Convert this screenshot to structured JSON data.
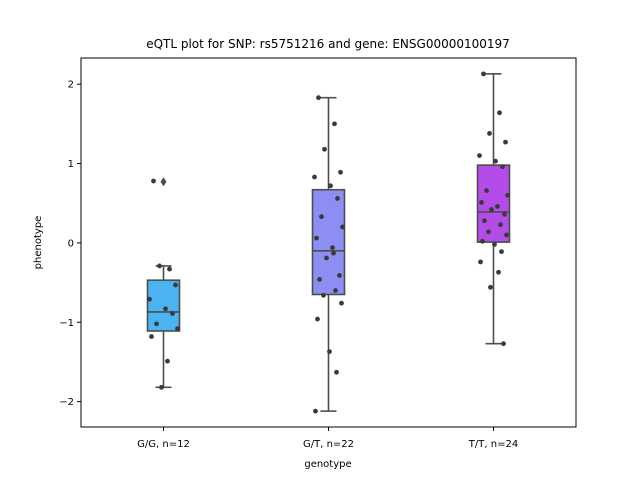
{
  "chart_data": {
    "type": "box",
    "title": "eQTL plot for SNP: rs5751216 and gene: ENSG00000100197",
    "xlabel": "genotype",
    "ylabel": "phenotype",
    "ylim": [
      -2.32,
      2.33
    ],
    "yticks": [
      2,
      1,
      0,
      -1,
      -2
    ],
    "ytick_labels": [
      "2",
      "1",
      "0",
      "−1",
      "−2"
    ],
    "grid": false,
    "groups": [
      {
        "label": "G/G, n=12",
        "color": "#4cb3f2",
        "box": {
          "whisker_low": -1.82,
          "q1": -1.11,
          "median": -0.87,
          "q3": -0.47,
          "whisker_high": -0.29
        },
        "outliers": [
          0.77
        ],
        "points": [
          0.78,
          -0.33,
          -0.29,
          -0.53,
          -0.71,
          -0.83,
          -0.89,
          -1.02,
          -1.08,
          -1.18,
          -1.49,
          -1.82
        ]
      },
      {
        "label": "G/T, n=22",
        "color": "#8c8ef4",
        "box": {
          "whisker_low": -2.12,
          "q1": -0.65,
          "median": -0.1,
          "q3": 0.67,
          "whisker_high": 1.83
        },
        "outliers": [],
        "points": [
          1.83,
          1.5,
          1.18,
          0.89,
          0.83,
          0.72,
          0.56,
          0.33,
          0.2,
          0.06,
          -0.06,
          -0.19,
          -0.41,
          -0.46,
          -0.6,
          -0.66,
          -0.76,
          -0.96,
          -1.37,
          -1.63,
          -2.12,
          -0.13
        ]
      },
      {
        "label": "T/T, n=24",
        "color": "#b44cea",
        "box": {
          "whisker_low": -1.27,
          "q1": 0.01,
          "median": 0.39,
          "q3": 0.98,
          "whisker_high": 2.13
        },
        "outliers": [],
        "points": [
          2.13,
          1.64,
          1.38,
          1.27,
          1.1,
          1.03,
          0.96,
          0.66,
          0.6,
          0.51,
          0.46,
          0.42,
          0.36,
          0.28,
          0.23,
          0.14,
          0.1,
          0.02,
          -0.02,
          -0.11,
          -0.24,
          -0.37,
          -0.56,
          -1.27
        ]
      }
    ]
  }
}
